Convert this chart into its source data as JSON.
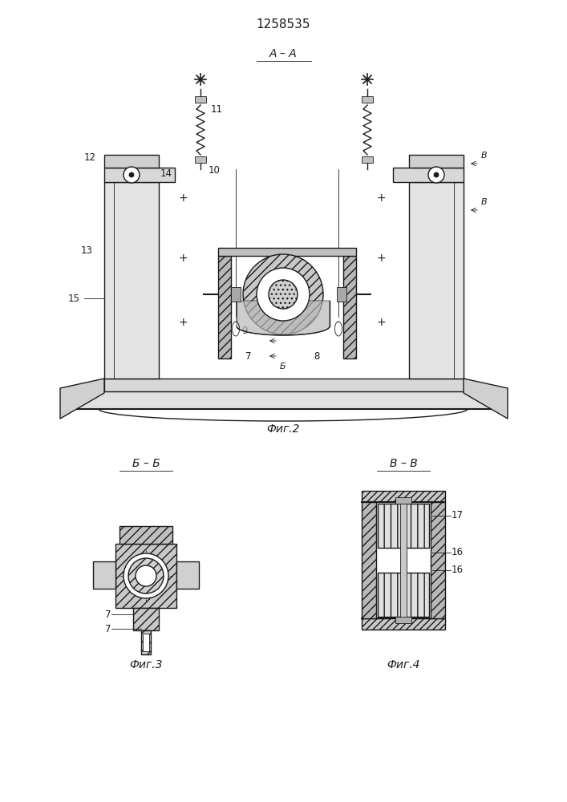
{
  "patent_number": "1258535",
  "fig2_label": "Фиг.2",
  "fig3_label": "Фиг.3",
  "fig4_label": "Фиг.4",
  "section_aa": "А – А",
  "section_bb": "Б – Б",
  "section_vv": "В – В",
  "bg_color": "#ffffff",
  "line_color": "#1a1a1a",
  "gray_light": "#e8e8e8",
  "gray_mid": "#c8c8c8",
  "gray_dark": "#a0a0a0"
}
